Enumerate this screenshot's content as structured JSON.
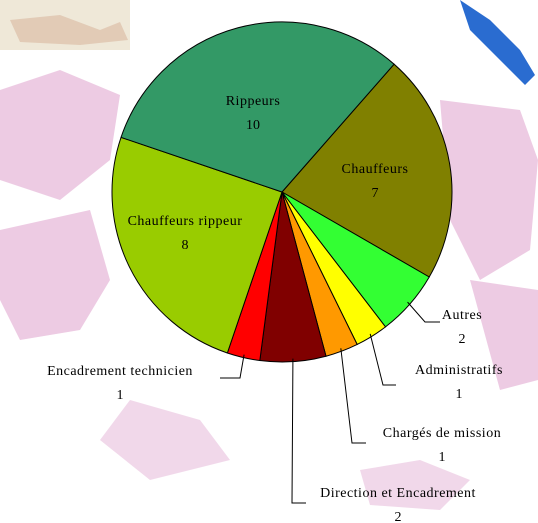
{
  "chart_data": {
    "type": "pie",
    "categories": [
      "Chauffeurs",
      "Autres",
      "Administratifs",
      "Chargés de mission",
      "Direction et Encadrement",
      "Encadrement technicien",
      "Chauffeurs rippeur",
      "Rippeurs"
    ],
    "values": [
      7,
      2,
      1,
      1,
      2,
      1,
      8,
      10
    ],
    "colors": [
      "#808000",
      "#33ff33",
      "#ffff00",
      "#ff9900",
      "#800000",
      "#ff0000",
      "#99cc00",
      "#339966"
    ]
  }
}
